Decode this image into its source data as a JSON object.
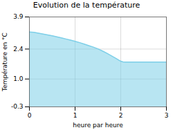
{
  "chart_data": {
    "type": "area",
    "title": "Evolution de la température",
    "xlabel": "heure par heure",
    "ylabel": "Température en °C",
    "color": "#7ecfe8",
    "x": [
      0,
      0.1,
      0.2,
      0.3,
      0.4,
      0.5,
      0.6,
      0.7,
      0.8,
      0.9,
      1.0,
      1.1,
      1.2,
      1.3,
      1.4,
      1.5,
      1.6,
      1.7,
      1.8,
      1.9,
      2.0,
      2.05,
      2.1,
      2.2,
      2.3,
      2.4,
      2.5,
      2.6,
      2.7,
      2.8,
      2.9,
      3.0
    ],
    "values": [
      3.2,
      3.18,
      3.14,
      3.1,
      3.06,
      3.02,
      2.97,
      2.92,
      2.87,
      2.82,
      2.76,
      2.7,
      2.63,
      2.56,
      2.49,
      2.41,
      2.31,
      2.2,
      2.08,
      1.96,
      1.83,
      1.8,
      1.79,
      1.79,
      1.79,
      1.79,
      1.79,
      1.79,
      1.79,
      1.79,
      1.79,
      1.79
    ],
    "xlim": [
      0,
      3
    ],
    "ylim": [
      -0.3,
      3.9
    ],
    "xticks": [
      0,
      1,
      2,
      3
    ],
    "yticks": [
      -0.3,
      {
        "value": 1.0,
        "label": "1.0"
      },
      2.4,
      3.9
    ],
    "grid": true
  }
}
